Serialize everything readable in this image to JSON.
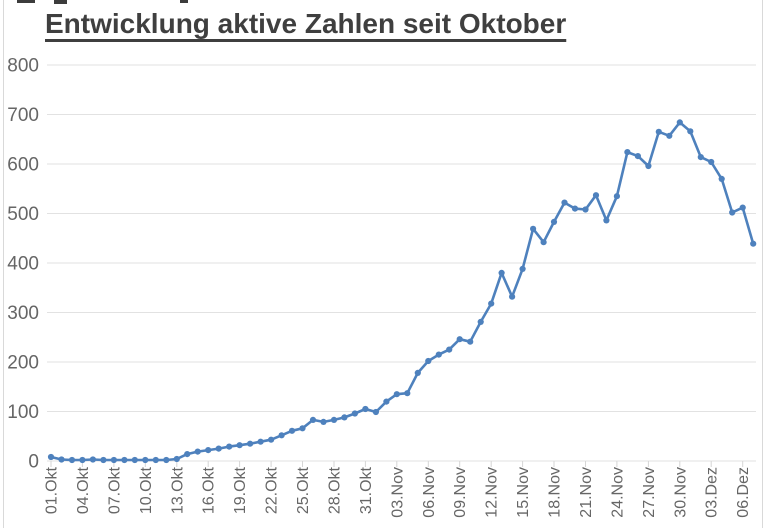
{
  "title": "Entwicklung aktive Zahlen seit Oktober",
  "chart_data": {
    "type": "line",
    "title": "Entwicklung aktive Zahlen seit Oktober",
    "xlabel": "",
    "ylabel": "",
    "ylim": [
      0,
      800
    ],
    "y_ticks": [
      0,
      100,
      200,
      300,
      400,
      500,
      600,
      700,
      800
    ],
    "grid": "horizontal",
    "legend_position": "none",
    "marker": "circle",
    "x_tick_every": 3,
    "x_tick_labels": [
      "01.Okt",
      "04.Okt",
      "07.Okt",
      "10.Okt",
      "13.Okt",
      "16.Okt",
      "19.Okt",
      "22.Okt",
      "25.Okt",
      "28.Okt",
      "31.Okt",
      "03.Nov",
      "06.Nov",
      "09.Nov",
      "12.Nov",
      "15.Nov",
      "18.Nov",
      "21.Nov",
      "24.Nov",
      "27.Nov",
      "30.Nov",
      "03.Dez",
      "06.Dez"
    ],
    "categories": [
      "01.Okt",
      "02.Okt",
      "03.Okt",
      "04.Okt",
      "05.Okt",
      "06.Okt",
      "07.Okt",
      "08.Okt",
      "09.Okt",
      "10.Okt",
      "11.Okt",
      "12.Okt",
      "13.Okt",
      "14.Okt",
      "15.Okt",
      "16.Okt",
      "17.Okt",
      "18.Okt",
      "19.Okt",
      "20.Okt",
      "21.Okt",
      "22.Okt",
      "23.Okt",
      "24.Okt",
      "25.Okt",
      "26.Okt",
      "27.Okt",
      "28.Okt",
      "29.Okt",
      "30.Okt",
      "31.Okt",
      "01.Nov",
      "02.Nov",
      "03.Nov",
      "04.Nov",
      "05.Nov",
      "06.Nov",
      "07.Nov",
      "08.Nov",
      "09.Nov",
      "10.Nov",
      "11.Nov",
      "12.Nov",
      "13.Nov",
      "14.Nov",
      "15.Nov",
      "16.Nov",
      "17.Nov",
      "18.Nov",
      "19.Nov",
      "20.Nov",
      "21.Nov",
      "22.Nov",
      "23.Nov",
      "24.Nov",
      "25.Nov",
      "26.Nov",
      "27.Nov",
      "28.Nov",
      "29.Nov",
      "30.Nov",
      "01.Dez",
      "02.Dez",
      "03.Dez",
      "04.Dez",
      "05.Dez",
      "06.Dez",
      "07.Dez"
    ],
    "series": [
      {
        "name": "aktive Zahlen",
        "values": [
          8,
          3,
          2,
          2,
          3,
          2,
          2,
          2,
          2,
          2,
          2,
          2,
          4,
          14,
          19,
          22,
          25,
          29,
          32,
          35,
          39,
          43,
          52,
          61,
          66,
          83,
          79,
          83,
          88,
          96,
          105,
          99,
          120,
          135,
          137,
          178,
          202,
          215,
          225,
          246,
          241,
          281,
          318,
          380,
          332,
          388,
          469,
          442,
          483,
          522,
          510,
          508,
          537,
          486,
          535,
          624,
          616,
          596,
          665,
          657,
          684,
          666,
          614,
          604,
          570,
          502,
          512,
          439
        ]
      }
    ],
    "colors": {
      "line": "#4e81bd",
      "marker": "#4e81bd",
      "title_text": "#3f3f3f",
      "axis_label_text": "#666666",
      "gridline": "#e2e2e2",
      "tick": "#d6d6d6",
      "page_border": "#d9d9d9"
    }
  }
}
